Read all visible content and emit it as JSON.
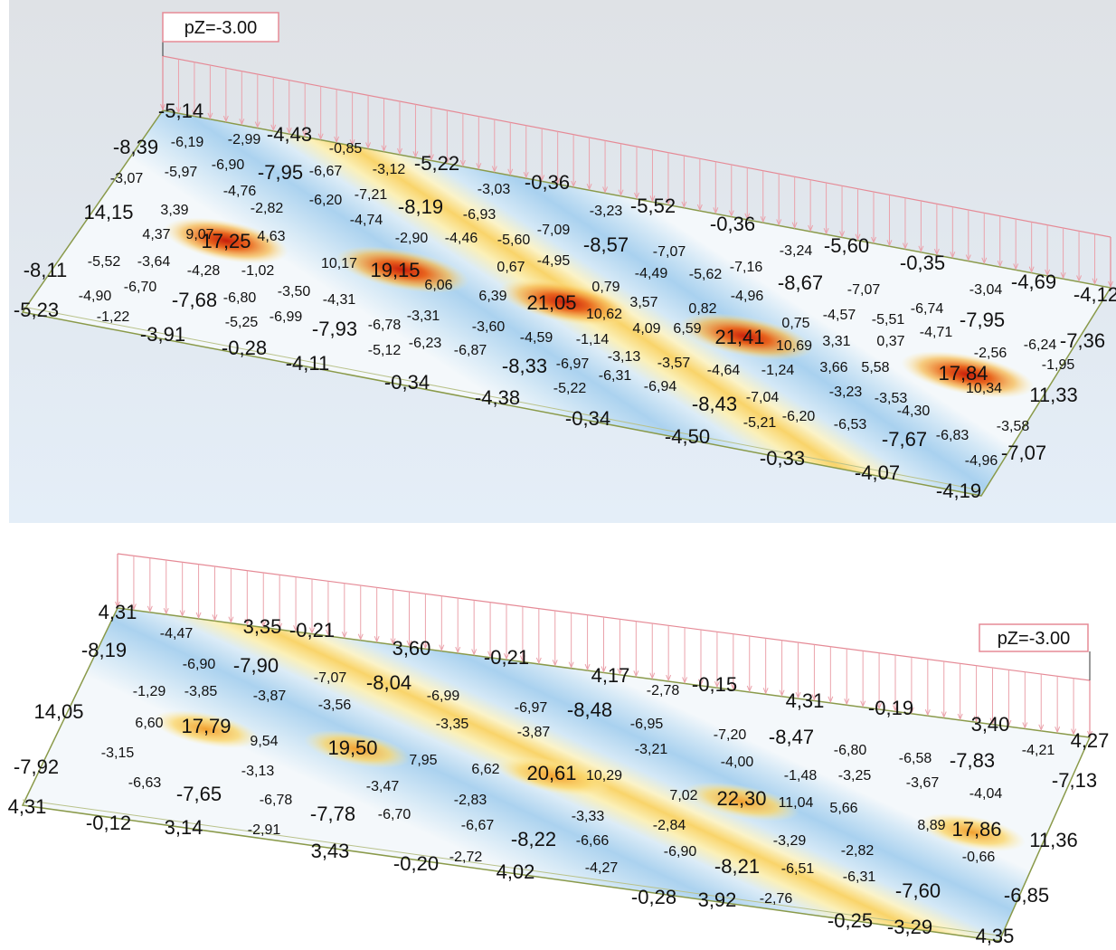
{
  "panels": [
    {
      "load_label": "pZ=-3.00",
      "labels": [
        "-5,14",
        "-8,39",
        "-6,19",
        "-2,99",
        "-4,43",
        "-0,85",
        "-6,90",
        "-7,95",
        "-6,67",
        "-3,12",
        "-5,22",
        "-3,07",
        "-5,97",
        "-4,76",
        "-6,20",
        "-7,21",
        "-3,03",
        "-0,36",
        "14,15",
        "3,39",
        "-2,82",
        "-4,74",
        "-8,19",
        "-6,93",
        "-3,23",
        "-5,52",
        "-0,36",
        "4,37",
        "9,07",
        "17,25",
        "4,63",
        "-2,90",
        "-4,46",
        "-5,60",
        "-7,09",
        "-8,57",
        "-7,07",
        "-3,24",
        "-5,60",
        "-0,35",
        "-8,11",
        "-5,52",
        "-3,64",
        "-4,28",
        "-1,02",
        "10,17",
        "19,15",
        "-4,95",
        "0,67",
        "-4,49",
        "-5,62",
        "-7,16",
        "-8,67",
        "-7,07",
        "-3,04",
        "-4,69",
        "-4,12",
        "-4,90",
        "-6,70",
        "-7,68",
        "-6,80",
        "-3,50",
        "-4,31",
        "6,06",
        "6,39",
        "21,05",
        "0,79",
        "10,62",
        "3,57",
        "0,82",
        "-4,96",
        "-6,74",
        "-5,23",
        "-1,22",
        "-5,25",
        "-6,99",
        "-7,93",
        "-6,78",
        "-3,31",
        "-3,60",
        "-4,59",
        "-1,14",
        "4,09",
        "6,59",
        "21,41",
        "0,75",
        "-4,57",
        "-5,51",
        "-4,71",
        "-7,95",
        "-3,91",
        "-0,28",
        "-5,12",
        "-6,23",
        "-6,87",
        "-3,13",
        "-3,57",
        "-4,64",
        "-1,24",
        "10,69",
        "3,31",
        "0,37",
        "-2,56",
        "-6,24",
        "-7,36",
        "-4,11",
        "-8,33",
        "-6,97",
        "-6,31",
        "3,66",
        "5,58",
        "17,84",
        "-1,95",
        "-0,34",
        "-5,22",
        "-6,94",
        "-8,43",
        "-7,04",
        "-3,23",
        "-3,53",
        "10,34",
        "11,33",
        "-4,38",
        "-4,30",
        "-0,34",
        "-5,21",
        "-6,20",
        "-6,53",
        "-3,58",
        "-4,50",
        "-7,67",
        "-6,83",
        "-0,33",
        "-4,96",
        "-7,07",
        "-4,07",
        "-4,19"
      ]
    },
    {
      "load_label": "pZ=-3.00",
      "labels": [
        "4,31",
        "-4,47",
        "3,35",
        "-0,21",
        "-8,19",
        "-6,90",
        "-7,90",
        "3,60",
        "-0,21",
        "-1,29",
        "-3,85",
        "-3,87",
        "-7,07",
        "-8,04",
        "-6,99",
        "4,17",
        "-2,78",
        "-0,15",
        "-3,56",
        "-6,97",
        "-8,48",
        "14,05",
        "6,60",
        "17,79",
        "9,54",
        "-3,35",
        "-3,87",
        "-6,95",
        "4,31",
        "-0,19",
        "3,40",
        "19,50",
        "7,95",
        "-3,21",
        "-7,20",
        "-8,47",
        "-6,80",
        "-6,58",
        "-7,83",
        "-4,21",
        "4,27",
        "-3,15",
        "-7,92",
        "-3,13",
        "6,62",
        "20,61",
        "10,29",
        "-4,00",
        "-1,48",
        "-3,25",
        "-3,67",
        "-4,04",
        "-7,13",
        "-6,63",
        "-7,65",
        "-6,78",
        "-3,47",
        "-2,83",
        "7,02",
        "22,30",
        "11,04",
        "5,66",
        "4,31",
        "-7,78",
        "-6,70",
        "-3,33",
        "-2,84",
        "-0,12",
        "3,14",
        "-2,91",
        "-6,67",
        "-8,22",
        "-6,66",
        "8,89",
        "17,86",
        "11,36",
        "3,43",
        "-3,29",
        "-2,82",
        "-0,66",
        "-0,20",
        "-2,72",
        "4,02",
        "-4,27",
        "-6,90",
        "-8,21",
        "-6,51",
        "-6,31",
        "-7,60",
        "-0,28",
        "3,92",
        "-2,76",
        "-6,85",
        "-0,25",
        "-3,29",
        "4,35"
      ]
    }
  ]
}
